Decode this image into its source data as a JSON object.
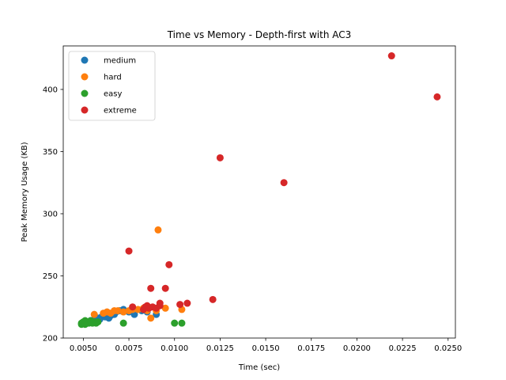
{
  "chart_data": {
    "type": "scatter",
    "title": "Time vs Memory - Depth-first with AC3",
    "xlabel": "Time (sec)",
    "ylabel": "Peak Memory Usage (KB)",
    "xlim": [
      0.0039,
      0.0254
    ],
    "ylim": [
      200,
      435
    ],
    "xticks": [
      0.005,
      0.0075,
      0.01,
      0.0125,
      0.015,
      0.0175,
      0.02,
      0.0225,
      0.025
    ],
    "xtick_labels": [
      "0.0050",
      "0.0075",
      "0.0100",
      "0.0125",
      "0.0150",
      "0.0175",
      "0.0200",
      "0.0225",
      "0.0250"
    ],
    "yticks": [
      200,
      250,
      300,
      350,
      400
    ],
    "ytick_labels": [
      "200",
      "250",
      "300",
      "350",
      "400"
    ],
    "grid": false,
    "legend_position": "top-left",
    "series": [
      {
        "name": "medium",
        "color": "#1f77b4",
        "x": [
          0.005,
          0.0052,
          0.0054,
          0.0056,
          0.0058,
          0.0059,
          0.006,
          0.0061,
          0.0062,
          0.0063,
          0.0064,
          0.0065,
          0.0066,
          0.0067,
          0.0068,
          0.007,
          0.0072,
          0.0075,
          0.0078,
          0.0082,
          0.0085,
          0.009
        ],
        "y": [
          212,
          213,
          214,
          215,
          216,
          215,
          217,
          218,
          217,
          219,
          216,
          218,
          220,
          219,
          221,
          222,
          223,
          221,
          219,
          222,
          221,
          219
        ]
      },
      {
        "name": "hard",
        "color": "#ff7f0e",
        "x": [
          0.0056,
          0.0061,
          0.0063,
          0.0065,
          0.0067,
          0.0069,
          0.0072,
          0.0075,
          0.0077,
          0.008,
          0.0083,
          0.0085,
          0.0087,
          0.009,
          0.0091,
          0.0095,
          0.0104
        ],
        "y": [
          219,
          220,
          221,
          220,
          222,
          222,
          221,
          222,
          223,
          223,
          224,
          222,
          216,
          222,
          287,
          224,
          223
        ]
      },
      {
        "name": "easy",
        "color": "#2ca02c",
        "x": [
          0.0049,
          0.0049,
          0.005,
          0.0051,
          0.0051,
          0.0052,
          0.0052,
          0.0053,
          0.0054,
          0.0054,
          0.0055,
          0.0056,
          0.0057,
          0.0058,
          0.0072,
          0.01,
          0.0104
        ],
        "y": [
          211,
          212,
          213,
          211,
          214,
          212,
          213,
          212,
          213,
          214,
          212,
          213,
          212,
          213,
          212,
          212,
          212
        ]
      },
      {
        "name": "extreme",
        "color": "#d62728",
        "x": [
          0.0075,
          0.0077,
          0.0083,
          0.0084,
          0.0085,
          0.0086,
          0.0087,
          0.0088,
          0.009,
          0.0092,
          0.0092,
          0.0095,
          0.0097,
          0.0103,
          0.0107,
          0.0121,
          0.0125,
          0.016,
          0.0219,
          0.0244
        ],
        "y": [
          270,
          225,
          223,
          225,
          226,
          224,
          240,
          225,
          224,
          226,
          228,
          240,
          259,
          227,
          228,
          231,
          345,
          325,
          427,
          394
        ]
      }
    ]
  }
}
